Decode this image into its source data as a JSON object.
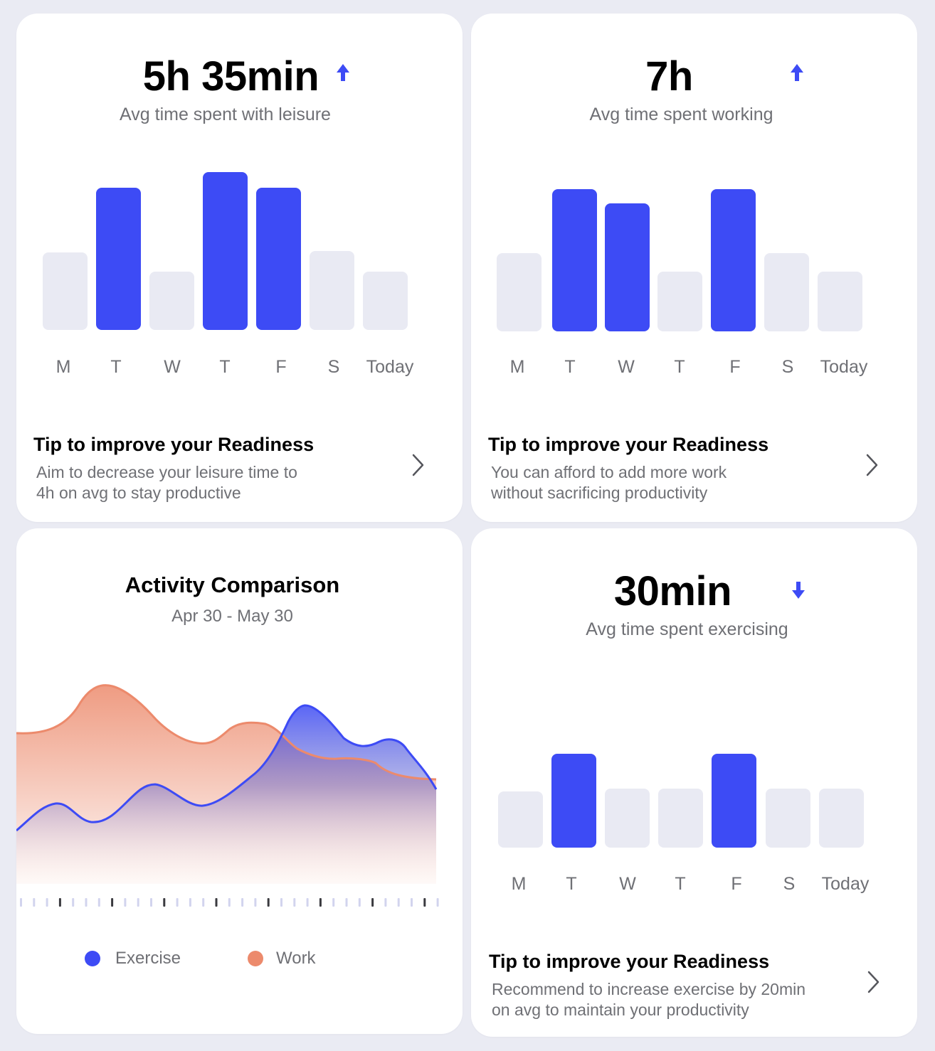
{
  "colors": {
    "accent": "#3d4bf5",
    "bar_inactive": "#e9eaf3",
    "work": "#ec8a6c",
    "muted_text": "#6f7075",
    "background": "#eaebf3"
  },
  "leisure": {
    "value": "5h 35min",
    "trend_icon": "arrow-up-icon",
    "subtitle": "Avg time spent with leisure",
    "days": [
      "M",
      "T",
      "W",
      "T",
      "F",
      "S",
      "Today"
    ],
    "highlighted": [
      false,
      true,
      false,
      true,
      true,
      false,
      false
    ],
    "relative_levels": [
      0.49,
      0.9,
      0.37,
      1.0,
      0.9,
      0.5,
      0.37
    ],
    "tip": {
      "title": "Tip to improve your Readiness",
      "line1": "Aim to decrease your leisure time to",
      "line2": "4h on avg to stay productive",
      "chevron_icon": "chevron-right-icon"
    }
  },
  "working": {
    "value": "7h",
    "trend_icon": "arrow-up-icon",
    "subtitle": "Avg time spent working",
    "days": [
      "M",
      "T",
      "W",
      "T",
      "F",
      "S",
      "Today"
    ],
    "highlighted": [
      false,
      true,
      true,
      false,
      true,
      false,
      false
    ],
    "relative_levels": [
      0.55,
      1.0,
      0.9,
      0.42,
      1.0,
      0.55,
      0.42
    ],
    "tip": {
      "title": "Tip to improve your Readiness",
      "line1": "You can afford to add more work",
      "line2": "without sacrificing productivity",
      "chevron_icon": "chevron-right-icon"
    }
  },
  "activity": {
    "title": "Activity Comparison",
    "date_range": "Apr 30 - May 30",
    "legend": [
      {
        "label": "Exercise",
        "color": "#3d4bf5"
      },
      {
        "label": "Work",
        "color": "#ec8a6c"
      }
    ]
  },
  "exercise": {
    "value": "30min",
    "trend_icon": "arrow-down-icon",
    "subtitle": "Avg time spent exercising",
    "days": [
      "M",
      "T",
      "W",
      "T",
      "F",
      "S",
      "Today"
    ],
    "highlighted": [
      false,
      true,
      false,
      false,
      true,
      false,
      false
    ],
    "relative_levels": [
      0.6,
      1.0,
      0.63,
      0.63,
      1.0,
      0.63,
      0.63
    ],
    "tip": {
      "title": "Tip to improve your Readiness",
      "line1": "Recommend to increase exercise by 20min",
      "line2": "on avg to maintain your productivity",
      "chevron_icon": "chevron-right-icon"
    }
  }
}
